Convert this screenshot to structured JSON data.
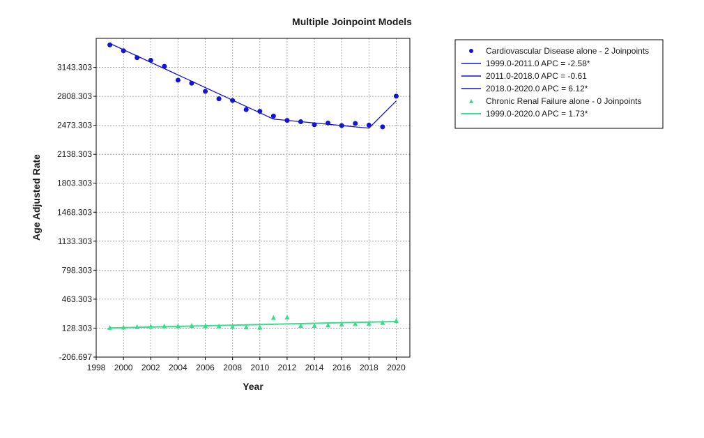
{
  "chart_data": {
    "type": "scatter",
    "title": "Multiple Joinpoint Models",
    "xlabel": "Year",
    "ylabel": "Age Adjusted Rate",
    "xlim": [
      1998,
      2021
    ],
    "ylim": [
      -206.697,
      3478.303
    ],
    "x_ticks": [
      1998,
      2000,
      2002,
      2004,
      2006,
      2008,
      2010,
      2012,
      2014,
      2016,
      2018,
      2020
    ],
    "x_tick_labels": [
      "1998",
      "2000",
      "2002",
      "2004",
      "2006",
      "2008",
      "2010",
      "2012",
      "2014",
      "2016",
      "2018",
      "2020"
    ],
    "y_ticks": [
      -206.697,
      128.303,
      463.303,
      798.303,
      1133.303,
      1468.303,
      1803.303,
      2138.303,
      2473.303,
      2808.303,
      3143.303
    ],
    "y_tick_labels": [
      "-206.697",
      "128.303",
      "463.303",
      "798.303",
      "1133.303",
      "1468.303",
      "1803.303",
      "2138.303",
      "2473.303",
      "2808.303",
      "3143.303"
    ],
    "grid": true,
    "legend_position": "right",
    "series": [
      {
        "name": "Cardiovascular Disease alone - 2 Joinpoints",
        "marker": "circle",
        "color": "#1414d2",
        "x": [
          1999,
          2000,
          2001,
          2002,
          2003,
          2004,
          2005,
          2006,
          2007,
          2008,
          2009,
          2010,
          2011,
          2012,
          2013,
          2014,
          2015,
          2016,
          2017,
          2018,
          2019,
          2020
        ],
        "values": [
          3403,
          3335,
          3255,
          3225,
          3155,
          2995,
          2960,
          2865,
          2780,
          2760,
          2655,
          2635,
          2580,
          2530,
          2515,
          2480,
          2500,
          2470,
          2495,
          2475,
          2455,
          2810
        ],
        "fit": [
          {
            "label": "1999.0-2011.0 APC  = -2.58*",
            "x": [
              1999,
              2011
            ],
            "y": [
              3420,
              2545
            ]
          },
          {
            "label": "2011.0-2018.0 APC  = -0.61",
            "x": [
              2011,
              2018
            ],
            "y": [
              2545,
              2440
            ]
          },
          {
            "label": "2018.0-2020.0 APC  = 6.12*",
            "x": [
              2018,
              2020
            ],
            "y": [
              2440,
              2755
            ]
          }
        ]
      },
      {
        "name": "Chronic Renal Failure alone - 0 Joinpoints",
        "marker": "triangle",
        "color": "#3ddc8c",
        "x": [
          1999,
          2000,
          2001,
          2002,
          2003,
          2004,
          2005,
          2006,
          2007,
          2008,
          2009,
          2010,
          2011,
          2012,
          2013,
          2014,
          2015,
          2016,
          2017,
          2018,
          2019,
          2020
        ],
        "values": [
          133,
          136,
          141,
          146,
          150,
          151,
          155,
          151,
          151,
          144,
          138,
          135,
          248,
          253,
          155,
          155,
          162,
          171,
          176,
          181,
          190,
          213
        ],
        "fit": [
          {
            "label": "1999.0-2020.0 APC  = 1.73*",
            "x": [
              1999,
              2020
            ],
            "y": [
              130,
              205
            ]
          }
        ]
      }
    ]
  }
}
